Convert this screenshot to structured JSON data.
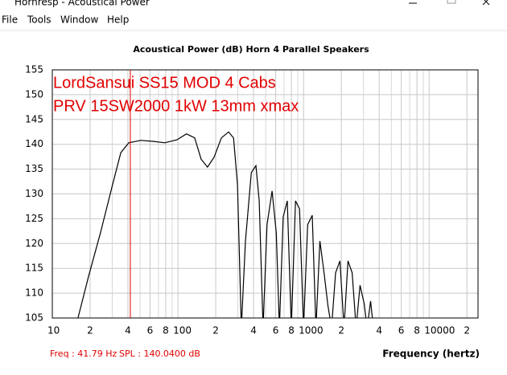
{
  "window": {
    "title": "Hornresp - Acoustical Power",
    "menu": [
      "File",
      "Tools",
      "Window",
      "Help"
    ]
  },
  "chart_data": {
    "type": "line",
    "title": "Acoustical Power (dB)   Horn   4 Parallel Speakers",
    "annotations": [
      "LordSansui SS15  MOD 4 Cabs",
      "PRV 15SW2000 1kW 13mm xmax"
    ],
    "x_label": "Frequency (hertz)",
    "log_x": true,
    "grid": true,
    "xlim": [
      10,
      24500
    ],
    "ylim": [
      105,
      155
    ],
    "xticks": [
      {
        "value": 10,
        "label": "10"
      },
      {
        "value": 20,
        "label": "2"
      },
      {
        "value": 40,
        "label": "4"
      },
      {
        "value": 60,
        "label": "6"
      },
      {
        "value": 80,
        "label": "8"
      },
      {
        "value": 100,
        "label": "100"
      },
      {
        "value": 200,
        "label": "2"
      },
      {
        "value": 400,
        "label": "4"
      },
      {
        "value": 600,
        "label": "6"
      },
      {
        "value": 800,
        "label": "8"
      },
      {
        "value": 1000,
        "label": "1000"
      },
      {
        "value": 2000,
        "label": "2"
      },
      {
        "value": 4000,
        "label": "4"
      },
      {
        "value": 6000,
        "label": "6"
      },
      {
        "value": 8000,
        "label": "8"
      },
      {
        "value": 10000,
        "label": "10000"
      },
      {
        "value": 20000,
        "label": "2"
      }
    ],
    "xminor": [
      30,
      50,
      70,
      90,
      300,
      500,
      700,
      900,
      3000,
      5000,
      7000,
      9000
    ],
    "yticks": [
      105,
      110,
      115,
      120,
      125,
      130,
      135,
      140,
      145,
      150,
      155
    ],
    "series": [
      {
        "color": "#000000",
        "x": [
          16,
          19.4,
          24.2,
          30.2,
          35.1,
          40.6,
          50.7,
          63.2,
          78.7,
          98.3,
          117,
          136,
          153,
          172,
          194,
          222,
          253,
          277,
          298,
          320,
          345,
          384,
          418,
          444,
          476,
          512,
          562,
          607,
          643,
          689,
          743,
          800,
          863,
          929,
          1000,
          1078,
          1173,
          1255,
          1350,
          1458,
          1563,
          1672,
          1800,
          1948,
          2100,
          2260,
          2440,
          2620,
          2820,
          3040,
          3210,
          3420,
          3600
        ],
        "values": [
          105,
          113.3,
          122.2,
          131.9,
          138.3,
          140.3,
          140.8,
          140.6,
          140.3,
          140.9,
          142.1,
          141.3,
          137,
          135.4,
          137.4,
          141.3,
          142.5,
          141.3,
          131.9,
          103,
          120.5,
          134.3,
          135.7,
          128.6,
          103,
          123.8,
          130.6,
          122.2,
          103,
          125.4,
          128.6,
          103,
          128.6,
          127,
          103,
          123.8,
          125.7,
          103,
          120.5,
          114.1,
          107.6,
          103,
          114.1,
          116.5,
          103,
          116.5,
          114.1,
          103,
          111.6,
          107.9,
          103,
          108.4,
          103
        ]
      }
    ],
    "cursor": {
      "x": 41.79,
      "y": 140.04,
      "color": "#e00000",
      "labels": [
        "Freq : 41.79 Hz",
        "SPL : 140.0400 dB"
      ]
    }
  }
}
